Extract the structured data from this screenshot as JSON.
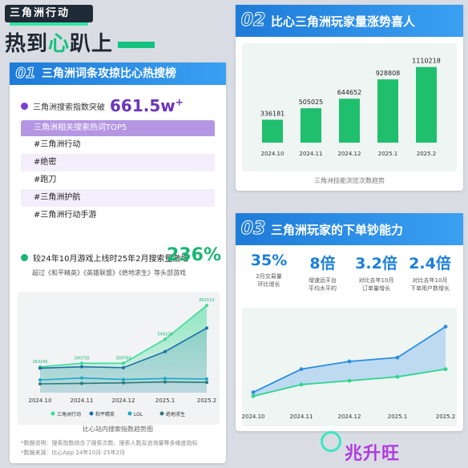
{
  "header": {
    "tag": "三角洲行动",
    "title_pre": "热到",
    "title_accent": "心",
    "title_post": "趴上"
  },
  "section1": {
    "num": "01",
    "title": "三角洲词条攻掠比心热搜榜",
    "stat_label": "三角洲搜索指数突破",
    "stat_value": "661.5w",
    "stat_sup": "+",
    "hot_title": "三角洲相关搜索热词TOP5",
    "hot_words": [
      "#三角洲行动",
      "#绝密",
      "#跑刀",
      "#三角洲护航",
      "#三角洲行动手游"
    ],
    "growth_text": "较24年10月游戏上线时25年2月搜索量激增",
    "growth_pct": "236%",
    "growth_sub": "超过《和平精英》《英雄联盟》《绝地求生》等头部游戏",
    "chart_caption": "比心站内搜索指数趋势图",
    "foot1": "*数据说明：搜索指数综合了搜索次数、搜索人数及咨询量等多维度指标",
    "foot2": "*数据来源：比心App 24年10月-25年2月"
  },
  "section2": {
    "num": "02",
    "title": "比心三角洲玩家量涨势喜人",
    "caption": "三角洲技能浏览次数趋势"
  },
  "section3": {
    "num": "03",
    "title": "三角洲玩家的下单钞能力",
    "metrics": [
      {
        "value": "35%",
        "desc1": "2月交易量",
        "desc2": "环比增长"
      },
      {
        "value": "8倍",
        "desc1": "增速远平台",
        "desc2": "平均水平的"
      },
      {
        "value": "3.2倍",
        "desc1": "对比去年10月",
        "desc2": "订单量增长"
      },
      {
        "value": "2.4倍",
        "desc1": "对比去年10月",
        "desc2": "下单用户数增长"
      }
    ]
  },
  "watermark": "兆升旺",
  "colors": {
    "blue": "#1e7bd8",
    "green": "#15c27e",
    "purple": "#6b35b8",
    "lavender": "#b596e3"
  },
  "chart_data": [
    {
      "type": "line",
      "categories": [
        "2024.10",
        "2024.11",
        "2024.12",
        "2025.1",
        "2025.2"
      ],
      "series": [
        {
          "name": "三角洲行动",
          "values": [
            263240,
            300730,
            300760,
            546100,
            892110
          ],
          "color": "#3ddc97"
        },
        {
          "name": "和平精英",
          "values": [
            250000,
            265000,
            255000,
            420000,
            660000
          ],
          "color": "#1e6fa8"
        },
        {
          "name": "LOL",
          "values": [
            130000,
            150000,
            135000,
            145000,
            140000
          ],
          "color": "#1aa9c8"
        },
        {
          "name": "绝地求生",
          "values": [
            90000,
            95000,
            100000,
            110000,
            105000
          ],
          "color": "#2c7a7a"
        }
      ],
      "data_labels": [
        "263240",
        "300730",
        "300760",
        "546100",
        "892110"
      ],
      "ylim": [
        0,
        950000
      ],
      "title": "比心站内搜索指数趋势图"
    },
    {
      "type": "bar",
      "categories": [
        "2024.10",
        "2024.11",
        "2024.12",
        "2025.1",
        "2025.2"
      ],
      "values": [
        336181,
        505025,
        644652,
        928808,
        1110218
      ],
      "ylim": [
        0,
        1200000
      ],
      "title": "三角洲技能浏览次数趋势"
    },
    {
      "type": "area",
      "categories": [
        "2024.10",
        "2024.11",
        "2024.12",
        "2025.1",
        "2025.2"
      ],
      "series": [
        {
          "name": "",
          "values": [
            3,
            9,
            11,
            12,
            20
          ],
          "color": "#2b8fe0"
        },
        {
          "name": "",
          "values": [
            2,
            5,
            6,
            7,
            9
          ],
          "color": "#2fd48d"
        }
      ],
      "ylim": [
        0,
        22
      ]
    }
  ]
}
